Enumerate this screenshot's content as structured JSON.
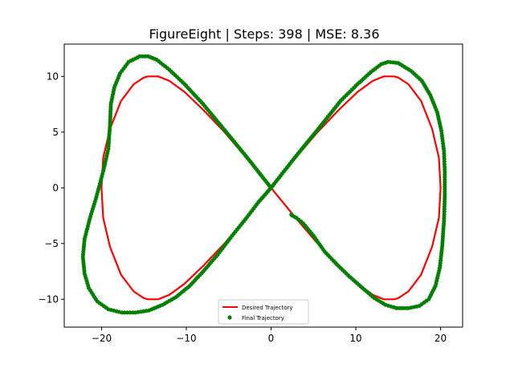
{
  "chart_data": {
    "type": "line",
    "title": "FigureEight | Steps: 398 | MSE: 8.36",
    "xlabel": "",
    "ylabel": "",
    "xlim": [
      -24.4,
      22.6
    ],
    "ylim": [
      -12.5,
      12.9
    ],
    "xticks": [
      -20,
      -10,
      0,
      10,
      20
    ],
    "yticks": [
      -10,
      -5,
      0,
      5,
      10
    ],
    "xtick_labels": [
      "−20",
      "−10",
      "0",
      "10",
      "20"
    ],
    "ytick_labels": [
      "−10",
      "−5",
      "0",
      "5",
      "10"
    ],
    "grid": false,
    "legend_position": "bottom-center",
    "series": [
      {
        "name": "Desired Trajectory",
        "kind": "line",
        "color": "#ff0000",
        "x": [
          0,
          2.8,
          5.5,
          8,
          10.2,
          12,
          13.3,
          14.1,
          14.5,
          15,
          16.2,
          17.7,
          19,
          19.8,
          20,
          19.8,
          19,
          17.7,
          16.2,
          15,
          14.5,
          14.1,
          13.3,
          12,
          10.2,
          8,
          5.5,
          2.8,
          0,
          -2.8,
          -5.5,
          -8,
          -10.2,
          -12,
          -13.3,
          -14.1,
          -14.5,
          -15,
          -16.2,
          -17.7,
          -19,
          -19.8,
          -20,
          -19.8,
          -19,
          -17.7,
          -16.2,
          -15,
          -14.5,
          -14.1,
          -13.3,
          -12,
          -10.2,
          -8,
          -5.5,
          -2.8,
          0
        ],
        "y": [
          0,
          2.6,
          5.0,
          7.0,
          8.6,
          9.6,
          10,
          10,
          10,
          9.9,
          9.3,
          7.8,
          5.3,
          2.7,
          0,
          -2.7,
          -5.3,
          -7.8,
          -9.3,
          -9.9,
          -10,
          -10,
          -10,
          -9.6,
          -8.6,
          -7,
          -5,
          -2.6,
          0,
          2.6,
          5,
          7,
          8.6,
          9.6,
          10,
          10,
          10,
          9.9,
          9.3,
          7.8,
          5.3,
          2.7,
          0,
          -2.7,
          -5.3,
          -7.8,
          -9.3,
          -9.9,
          -10,
          -10,
          -10,
          -9.6,
          -8.6,
          -7,
          -5,
          -2.6,
          0
        ]
      },
      {
        "name": "Final Trajectory",
        "kind": "scatter",
        "color": "#008000",
        "x": [
          0,
          3,
          5.8,
          8.2,
          10.2,
          11.8,
          13,
          13.8,
          15,
          16.5,
          17.8,
          18.8,
          19.6,
          20.1,
          20.4,
          20.5,
          20.5,
          20.4,
          20.2,
          19.9,
          19.4,
          18.6,
          17.5,
          16.2,
          14.8,
          13.5,
          12.2,
          10.8,
          9.3,
          7.8,
          6.3,
          5,
          3.8,
          3,
          2.5,
          2.4
        ],
        "y": [
          0,
          2.9,
          5.5,
          7.8,
          9.3,
          10.4,
          11.1,
          11.3,
          11.2,
          10.5,
          9.6,
          8.3,
          6.8,
          5.1,
          3.3,
          1.4,
          -0.8,
          -3,
          -5.2,
          -7.2,
          -8.8,
          -10,
          -10.6,
          -10.8,
          -10.8,
          -10.5,
          -9.9,
          -9,
          -8,
          -6.9,
          -5.7,
          -4.3,
          -3.2,
          -2.7,
          -2.5,
          -2.4
        ],
        "x_neg": [
          0,
          -2.8,
          -5.5,
          -8,
          -10.2,
          -12,
          -13.5,
          -14.5,
          -15.5,
          -16.8,
          -17.8,
          -18.5,
          -18.9,
          -19,
          -19.2,
          -19.8,
          -20.6,
          -21.4,
          -22,
          -22.2,
          -22,
          -21.5,
          -20.5,
          -19.2,
          -17.6,
          -16,
          -14.4,
          -12.8,
          -11.2,
          -9.6,
          -8,
          -6.3,
          -4.6,
          -3,
          -1.5,
          0
        ],
        "y_neg": [
          0,
          2.7,
          5.2,
          7.5,
          9.3,
          10.6,
          11.5,
          11.8,
          11.8,
          11.3,
          10.3,
          9,
          7.5,
          5.7,
          3.5,
          1.5,
          -0.8,
          -2.8,
          -4.6,
          -6.2,
          -7.7,
          -9,
          -10.2,
          -10.9,
          -11.2,
          -11.2,
          -11,
          -10.5,
          -9.8,
          -8.8,
          -7.5,
          -6,
          -4.3,
          -2.8,
          -1.3,
          0
        ]
      }
    ]
  }
}
